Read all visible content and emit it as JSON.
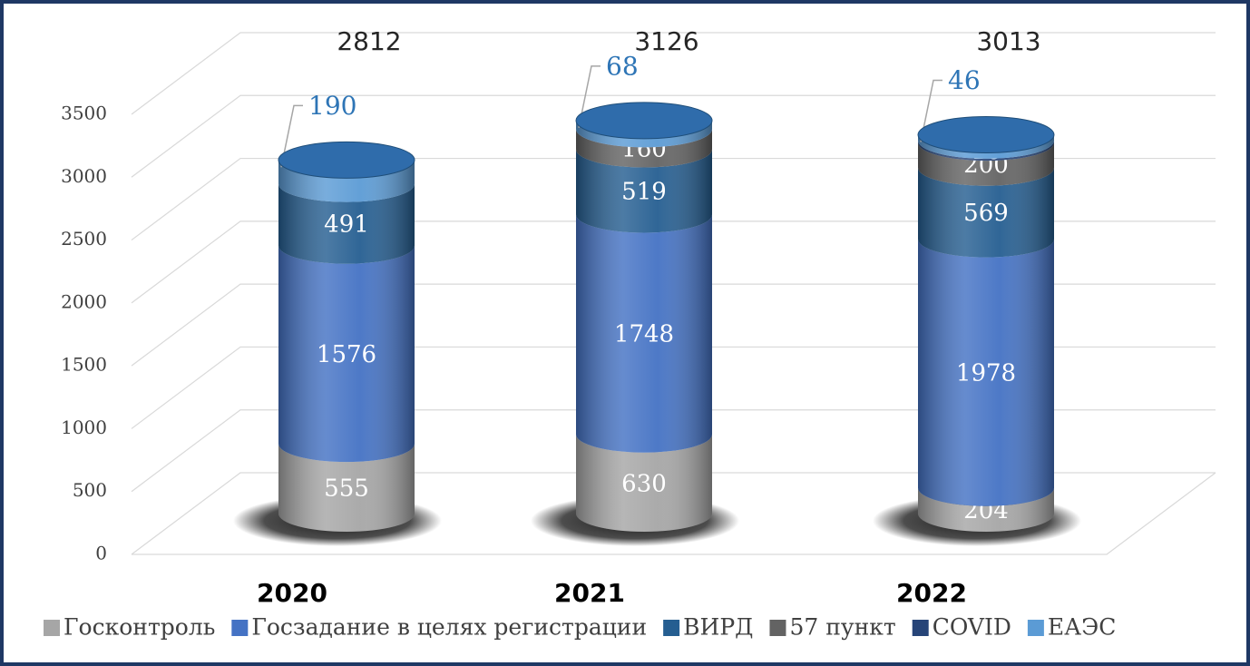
{
  "chart_data": {
    "type": "stacked_cylinder",
    "categories": [
      "2020",
      "2021",
      "2022"
    ],
    "totals": [
      2812,
      3126,
      3013
    ],
    "series": [
      {
        "name": "Госконтроль",
        "color": "#a6a6a6",
        "values": [
          555,
          630,
          204
        ]
      },
      {
        "name": "Госзадание в целях регистрации",
        "color": "#4472c4",
        "values": [
          1576,
          1748,
          1978
        ]
      },
      {
        "name": "ВИРД",
        "color": "#255e91",
        "values": [
          491,
          519,
          569
        ]
      },
      {
        "name": "57 пункт",
        "color": "#636363",
        "values": [
          0,
          160,
          200
        ]
      },
      {
        "name": "COVID",
        "color": "#264478",
        "values": [
          0,
          1,
          16
        ]
      },
      {
        "name": "ЕАЭС",
        "color": "#5b9bd5",
        "values": [
          190,
          68,
          46
        ]
      }
    ],
    "ylim": [
      0,
      3500
    ],
    "yticks": [
      0,
      500,
      1000,
      1500,
      2000,
      2500,
      3000,
      3500
    ],
    "grid": true
  }
}
